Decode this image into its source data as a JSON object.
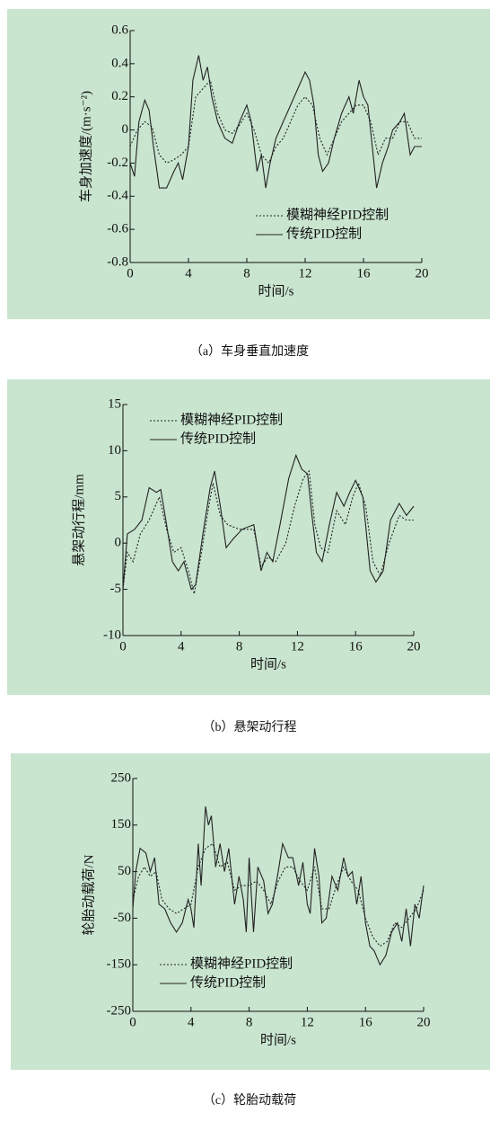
{
  "chart_data": [
    {
      "type": "line",
      "caption": "（a）车身垂直加速度",
      "ylabel": "车身加速度/(m·s⁻²)",
      "xlabel": "时间/s",
      "xlim": [
        0,
        20
      ],
      "xticks": [
        0,
        4,
        8,
        12,
        16,
        20
      ],
      "ylim": [
        -0.8,
        0.6
      ],
      "yticks": [
        -0.8,
        -0.6,
        -0.4,
        -0.2,
        0,
        0.2,
        0.4,
        0.6
      ],
      "legend": "lower right",
      "series": [
        {
          "name": "模糊神经PID控制",
          "color": "#222222",
          "style": "dotted",
          "x": [
            0,
            0.5,
            1,
            1.5,
            2,
            2.5,
            3,
            3.5,
            4,
            4.5,
            5,
            5.5,
            6,
            6.5,
            7,
            7.5,
            8,
            8.5,
            9,
            9.5,
            10,
            10.5,
            11,
            11.5,
            12,
            12.5,
            13,
            13.5,
            14,
            14.5,
            15,
            15.5,
            16,
            16.5,
            17,
            17.5,
            18,
            18.5,
            19,
            19.5,
            20
          ],
          "values": [
            -0.1,
            0,
            0.05,
            0.02,
            -0.15,
            -0.2,
            -0.18,
            -0.15,
            -0.1,
            0.2,
            0.25,
            0.3,
            0.1,
            0,
            -0.02,
            0.03,
            0.1,
            0,
            -0.15,
            -0.2,
            -0.1,
            -0.05,
            0.05,
            0.15,
            0.2,
            0.15,
            -0.05,
            -0.15,
            -0.05,
            0.05,
            0.1,
            0.15,
            0.15,
            0.05,
            -0.15,
            -0.05,
            -0.05,
            0.05,
            0.05,
            -0.05,
            -0.05
          ]
        },
        {
          "name": "传统PID控制",
          "color": "#222222",
          "style": "solid",
          "x": [
            0,
            0.3,
            0.6,
            1,
            1.3,
            1.6,
            2,
            2.5,
            3,
            3.3,
            3.6,
            4,
            4.3,
            4.7,
            5,
            5.3,
            5.6,
            6,
            6.5,
            7,
            7.5,
            8,
            8.3,
            8.7,
            9,
            9.3,
            9.6,
            10,
            10.5,
            11,
            11.5,
            12,
            12.3,
            12.6,
            12.9,
            13.2,
            13.6,
            14,
            14.5,
            15,
            15.3,
            15.7,
            16,
            16.3,
            16.6,
            16.9,
            17.3,
            17.7,
            18,
            18.5,
            18.8,
            19.2,
            19.5,
            20
          ],
          "values": [
            -0.2,
            -0.28,
            0.05,
            0.18,
            0.12,
            -0.1,
            -0.35,
            -0.35,
            -0.25,
            -0.2,
            -0.3,
            -0.1,
            0.3,
            0.45,
            0.3,
            0.38,
            0.2,
            0.05,
            -0.05,
            -0.08,
            0.05,
            0.15,
            0.05,
            -0.25,
            -0.15,
            -0.35,
            -0.2,
            -0.05,
            0.05,
            0.15,
            0.25,
            0.35,
            0.3,
            0.15,
            -0.15,
            -0.25,
            -0.2,
            -0.05,
            0.1,
            0.2,
            0.1,
            0.3,
            0.2,
            0.15,
            -0.1,
            -0.35,
            -0.2,
            -0.1,
            0,
            0.05,
            0.1,
            -0.15,
            -0.1,
            -0.1
          ]
        }
      ]
    },
    {
      "type": "line",
      "caption": "（b）悬架动行程",
      "ylabel": "悬架动行程/mm",
      "xlabel": "时间/s",
      "xlim": [
        0,
        20
      ],
      "xticks": [
        0,
        4,
        8,
        12,
        16,
        20
      ],
      "ylim": [
        -10,
        15
      ],
      "yticks": [
        -10,
        -5,
        0,
        5,
        10,
        15
      ],
      "legend": "upper left",
      "series": [
        {
          "name": "模糊神经PID控制",
          "color": "#222222",
          "style": "dotted",
          "x": [
            0,
            0.3,
            0.7,
            1.2,
            1.8,
            2.5,
            3,
            3.5,
            4,
            4.5,
            4.9,
            5.4,
            5.9,
            6.2,
            6.7,
            7.2,
            8,
            9,
            9.5,
            10,
            10.5,
            11.2,
            11.8,
            12.4,
            12.8,
            13.2,
            13.6,
            14.1,
            14.7,
            15.3,
            15.8,
            16.2,
            16.7,
            17.2,
            17.7,
            18.3,
            19,
            19.5,
            20
          ],
          "values": [
            -5,
            -1,
            -2,
            1,
            2.5,
            5,
            1.5,
            -1,
            -0.5,
            -3,
            -5.5,
            -1,
            4,
            6.5,
            3,
            2,
            1.5,
            1.5,
            -2.5,
            -1.5,
            -2,
            0,
            4,
            7,
            7.8,
            2,
            -0.5,
            -1,
            3.5,
            2,
            5,
            6.5,
            4,
            -2,
            -3.5,
            0,
            3,
            2.5,
            2.5
          ]
        },
        {
          "name": "传统PID控制",
          "color": "#222222",
          "style": "solid",
          "x": [
            0,
            0.3,
            0.8,
            1.3,
            1.8,
            2.3,
            2.6,
            3,
            3.4,
            3.8,
            4.2,
            4.7,
            5,
            5.5,
            6,
            6.3,
            6.7,
            7.1,
            7.6,
            8.2,
            9,
            9.5,
            9.9,
            10.3,
            10.8,
            11.4,
            11.9,
            12.3,
            12.7,
            13,
            13.3,
            13.7,
            14.2,
            14.7,
            15.2,
            15.6,
            16,
            16.5,
            17,
            17.4,
            17.9,
            18.4,
            19,
            19.5,
            20
          ],
          "values": [
            -5,
            1,
            1.5,
            2.5,
            6,
            5.5,
            5.8,
            2,
            -2,
            -3,
            -2,
            -5,
            -4.5,
            1,
            6,
            7.8,
            4,
            -0.5,
            0.5,
            1.5,
            2,
            -3,
            -1,
            -2,
            2,
            7,
            9.5,
            8,
            7.5,
            3,
            -1,
            -2,
            2,
            5.5,
            4,
            5.5,
            6.8,
            5,
            -3,
            -4.2,
            -3,
            2.5,
            4.3,
            3,
            4
          ]
        }
      ]
    },
    {
      "type": "line",
      "caption": "（c）轮胎动载荷",
      "ylabel": "轮胎动载荷/N",
      "xlabel": "时间/s",
      "xlim": [
        0,
        20
      ],
      "xticks": [
        0,
        4,
        8,
        12,
        16,
        20
      ],
      "ylim": [
        -250,
        250
      ],
      "yticks": [
        -250,
        -150,
        -50,
        50,
        150,
        250
      ],
      "legend": "lower left",
      "series": [
        {
          "name": "模糊神经PID控制",
          "color": "#222222",
          "style": "dotted",
          "x": [
            0,
            0.4,
            0.8,
            1.2,
            1.6,
            2,
            2.5,
            3,
            3.5,
            4,
            4.5,
            5,
            5.5,
            6,
            6.5,
            7,
            7.5,
            8,
            8.5,
            9,
            9.5,
            10,
            10.5,
            11,
            11.5,
            12,
            12.5,
            13,
            13.5,
            14,
            14.5,
            15,
            15.5,
            16,
            16.5,
            17,
            17.5,
            18,
            18.5,
            19,
            19.5,
            20
          ],
          "values": [
            -10,
            40,
            60,
            40,
            50,
            -10,
            -30,
            -40,
            -30,
            -20,
            60,
            100,
            110,
            60,
            70,
            10,
            20,
            20,
            30,
            10,
            -20,
            30,
            60,
            60,
            30,
            10,
            60,
            -30,
            -30,
            20,
            60,
            30,
            10,
            -50,
            -90,
            -110,
            -100,
            -60,
            -70,
            -50,
            -30,
            10
          ]
        },
        {
          "name": "传统PID控制",
          "color": "#222222",
          "style": "solid",
          "x": [
            0,
            0.2,
            0.5,
            0.9,
            1.2,
            1.5,
            1.8,
            2.2,
            2.6,
            3,
            3.4,
            3.8,
            4,
            4.2,
            4.5,
            4.7,
            5,
            5.2,
            5.4,
            5.7,
            6,
            6.3,
            6.6,
            7,
            7.3,
            7.6,
            7.8,
            8,
            8.3,
            8.6,
            9,
            9.3,
            9.6,
            10,
            10.3,
            10.7,
            11,
            11.4,
            11.7,
            12,
            12.2,
            12.5,
            12.8,
            13,
            13.3,
            13.7,
            14.1,
            14.5,
            14.8,
            15.1,
            15.4,
            15.7,
            16,
            16.3,
            16.6,
            17,
            17.4,
            17.8,
            18.2,
            18.5,
            18.8,
            19.1,
            19.4,
            19.7,
            20
          ],
          "values": [
            -30,
            50,
            100,
            90,
            50,
            80,
            -20,
            -30,
            -60,
            -80,
            -60,
            -10,
            -30,
            -70,
            110,
            20,
            190,
            150,
            170,
            60,
            110,
            50,
            100,
            -20,
            40,
            -10,
            -80,
            80,
            -80,
            60,
            30,
            -40,
            -20,
            50,
            110,
            80,
            80,
            20,
            70,
            -20,
            -40,
            100,
            40,
            -60,
            -50,
            40,
            10,
            80,
            40,
            50,
            -20,
            40,
            -60,
            -110,
            -120,
            -150,
            -130,
            -80,
            -60,
            -100,
            -30,
            -110,
            -20,
            -50,
            20
          ]
        }
      ]
    }
  ]
}
